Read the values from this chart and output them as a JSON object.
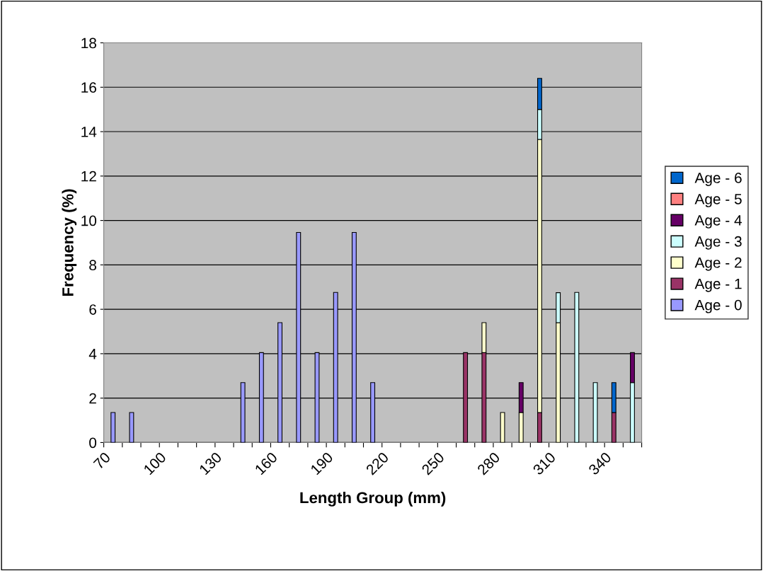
{
  "chart_data": {
    "type": "bar",
    "stacked": true,
    "xlabel": "Length Group (mm)",
    "ylabel": "Frequency (%)",
    "categories": [
      "70",
      null,
      null,
      "100",
      null,
      null,
      "130",
      null,
      null,
      "160",
      null,
      null,
      "190",
      null,
      null,
      "220",
      null,
      null,
      "250",
      null,
      null,
      "280",
      null,
      null,
      "310",
      null,
      null,
      "340",
      null
    ],
    "series": [
      {
        "name": "Age - 0",
        "color": "#9999ff",
        "values": [
          1.35,
          1.35,
          null,
          null,
          null,
          null,
          null,
          2.7,
          4.05,
          5.4,
          9.46,
          4.05,
          6.76,
          9.46,
          2.7,
          null,
          null,
          null,
          null,
          null,
          null,
          null,
          null,
          null,
          null,
          null,
          null,
          null,
          null
        ]
      },
      {
        "name": "Age - 1",
        "color": "#993366",
        "values": [
          null,
          null,
          null,
          null,
          null,
          null,
          null,
          null,
          null,
          null,
          null,
          null,
          null,
          null,
          null,
          null,
          null,
          null,
          null,
          4.05,
          4.05,
          null,
          null,
          1.35,
          null,
          null,
          null,
          1.35,
          null
        ]
      },
      {
        "name": "Age - 2",
        "color": "#ffffcc",
        "values": [
          null,
          null,
          null,
          null,
          null,
          null,
          null,
          null,
          null,
          null,
          null,
          null,
          null,
          null,
          null,
          null,
          null,
          null,
          null,
          null,
          1.35,
          1.35,
          1.35,
          12.3,
          5.4,
          null,
          null,
          null,
          null
        ]
      },
      {
        "name": "Age - 3",
        "color": "#ccffff",
        "values": [
          null,
          null,
          null,
          null,
          null,
          null,
          null,
          null,
          null,
          null,
          null,
          null,
          null,
          null,
          null,
          null,
          null,
          null,
          null,
          null,
          null,
          null,
          null,
          1.35,
          1.35,
          6.76,
          2.7,
          null,
          2.7
        ]
      },
      {
        "name": "Age - 4",
        "color": "#660066",
        "values": [
          null,
          null,
          null,
          null,
          null,
          null,
          null,
          null,
          null,
          null,
          null,
          null,
          null,
          null,
          null,
          null,
          null,
          null,
          null,
          null,
          null,
          null,
          1.35,
          null,
          null,
          null,
          null,
          null,
          1.35
        ]
      },
      {
        "name": "Age - 5",
        "color": "#ff8080",
        "values": [
          null,
          null,
          null,
          null,
          null,
          null,
          null,
          null,
          null,
          null,
          null,
          null,
          null,
          null,
          null,
          null,
          null,
          null,
          null,
          null,
          null,
          null,
          null,
          null,
          null,
          null,
          null,
          null,
          null
        ]
      },
      {
        "name": "Age - 6",
        "color": "#0066cc",
        "values": [
          null,
          null,
          null,
          null,
          null,
          null,
          null,
          null,
          null,
          null,
          null,
          null,
          null,
          null,
          null,
          null,
          null,
          null,
          null,
          null,
          null,
          null,
          null,
          1.4,
          null,
          null,
          null,
          1.35,
          null
        ]
      }
    ],
    "ylim": [
      0,
      18
    ],
    "yticks": [
      0,
      2,
      4,
      6,
      8,
      10,
      12,
      14,
      16,
      18
    ],
    "grid": "y",
    "legend": "right"
  }
}
